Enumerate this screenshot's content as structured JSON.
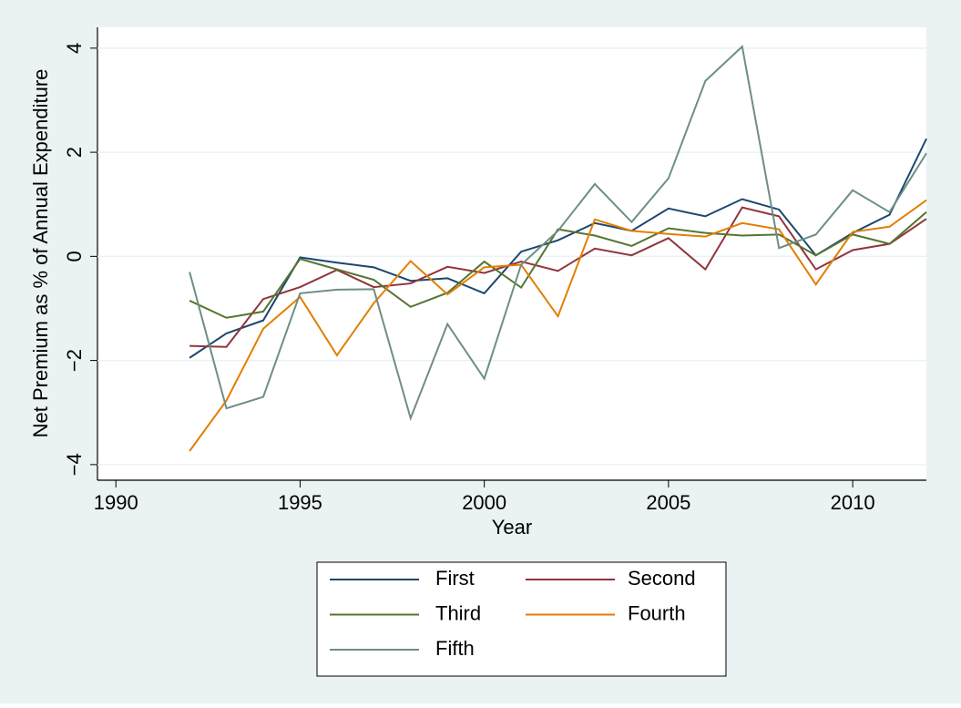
{
  "chart_data": {
    "type": "line",
    "x_label": "Year",
    "y_label": "Net Premium as % of Annual Expenditure",
    "x": [
      1992,
      1993,
      1994,
      1995,
      1996,
      1997,
      1998,
      1999,
      2000,
      2001,
      2002,
      2003,
      2004,
      2005,
      2006,
      2007,
      2008,
      2009,
      2010,
      2011,
      2012
    ],
    "series": [
      {
        "name": "First",
        "color": "#1a476f",
        "values": [
          -1.95,
          -1.48,
          -1.23,
          -0.02,
          -0.12,
          -0.21,
          -0.47,
          -0.42,
          -0.71,
          0.09,
          0.31,
          0.64,
          0.49,
          0.92,
          0.77,
          1.1,
          0.9,
          0.02,
          0.45,
          0.8,
          2.26
        ]
      },
      {
        "name": "Second",
        "color": "#90353b",
        "values": [
          -1.72,
          -1.74,
          -0.82,
          -0.59,
          -0.26,
          -0.59,
          -0.52,
          -0.2,
          -0.32,
          -0.1,
          -0.28,
          0.15,
          0.02,
          0.35,
          -0.25,
          0.94,
          0.77,
          -0.25,
          0.12,
          0.24,
          0.72
        ]
      },
      {
        "name": "Third",
        "color": "#55752f",
        "values": [
          -0.85,
          -1.18,
          -1.06,
          -0.05,
          -0.25,
          -0.45,
          -0.97,
          -0.7,
          -0.1,
          -0.6,
          0.52,
          0.4,
          0.2,
          0.54,
          0.45,
          0.4,
          0.42,
          0.02,
          0.42,
          0.24,
          0.85
        ]
      },
      {
        "name": "Fourth",
        "color": "#e37e00",
        "values": [
          -3.74,
          -2.77,
          -1.39,
          -0.78,
          -1.9,
          -0.9,
          -0.09,
          -0.73,
          -0.21,
          -0.16,
          -1.15,
          0.71,
          0.49,
          0.43,
          0.38,
          0.64,
          0.52,
          -0.54,
          0.47,
          0.57,
          1.08
        ]
      },
      {
        "name": "Fifth",
        "color": "#6e8e84",
        "values": [
          -0.3,
          -2.92,
          -2.7,
          -0.71,
          -0.64,
          -0.63,
          -3.11,
          -1.3,
          -2.35,
          -0.16,
          0.49,
          1.39,
          0.66,
          1.5,
          3.37,
          4.03,
          0.16,
          0.42,
          1.27,
          0.85,
          1.98
        ]
      }
    ],
    "xlim": [
      1989.5,
      2012
    ],
    "xticks": [
      1990,
      1995,
      2000,
      2005,
      2010
    ],
    "ylim": [
      -4.3,
      4.4
    ],
    "yticks": [
      {
        "value": -4,
        "label": "−4"
      },
      {
        "value": -2,
        "label": "−2"
      },
      0,
      2,
      4
    ],
    "grid": true,
    "legend_position": "bottom"
  }
}
